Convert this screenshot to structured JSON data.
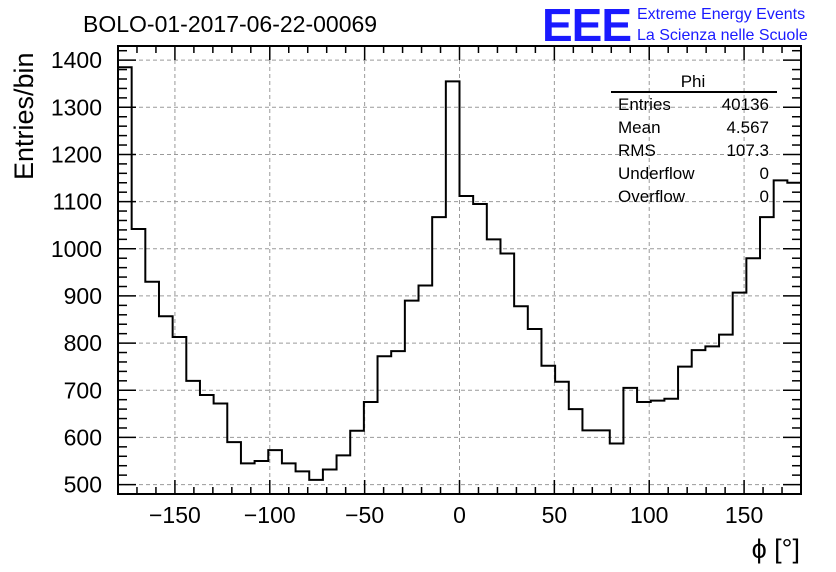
{
  "chart_data": {
    "type": "histogram",
    "title": "BOLO-01-2017-06-22-00069",
    "xlabel": "ϕ [°]",
    "ylabel": "Entries/bin",
    "xlim": [
      -180,
      180
    ],
    "ylim": [
      480,
      1430
    ],
    "grid": true,
    "bin_width": 7.2,
    "x_ticks": [
      -150,
      -100,
      -50,
      0,
      50,
      100,
      150
    ],
    "y_ticks": [
      500,
      600,
      700,
      800,
      900,
      1000,
      1100,
      1200,
      1300,
      1400
    ],
    "values": [
      1385,
      1042,
      930,
      857,
      813,
      720,
      690,
      672,
      590,
      545,
      550,
      573,
      545,
      528,
      510,
      532,
      562,
      614,
      675,
      772,
      783,
      890,
      922,
      1067,
      1355,
      1112,
      1095,
      1020,
      990,
      878,
      830,
      752,
      718,
      660,
      615,
      615,
      587,
      705,
      675,
      678,
      682,
      750,
      785,
      793,
      818,
      907,
      980,
      1067,
      1145,
      1140
    ]
  },
  "stats": {
    "title": "Phi",
    "rows": [
      {
        "label": "Entries",
        "value": "40136"
      },
      {
        "label": "Mean",
        "value": "4.567"
      },
      {
        "label": "RMS",
        "value": "107.3"
      },
      {
        "label": "Underflow",
        "value": "0"
      },
      {
        "label": "Overflow",
        "value": "0"
      }
    ]
  },
  "logo": {
    "mark": "EEE",
    "line1": "Extreme Energy Events",
    "line2": "La Scienza nelle Scuole",
    "color": "#1a1aff"
  }
}
